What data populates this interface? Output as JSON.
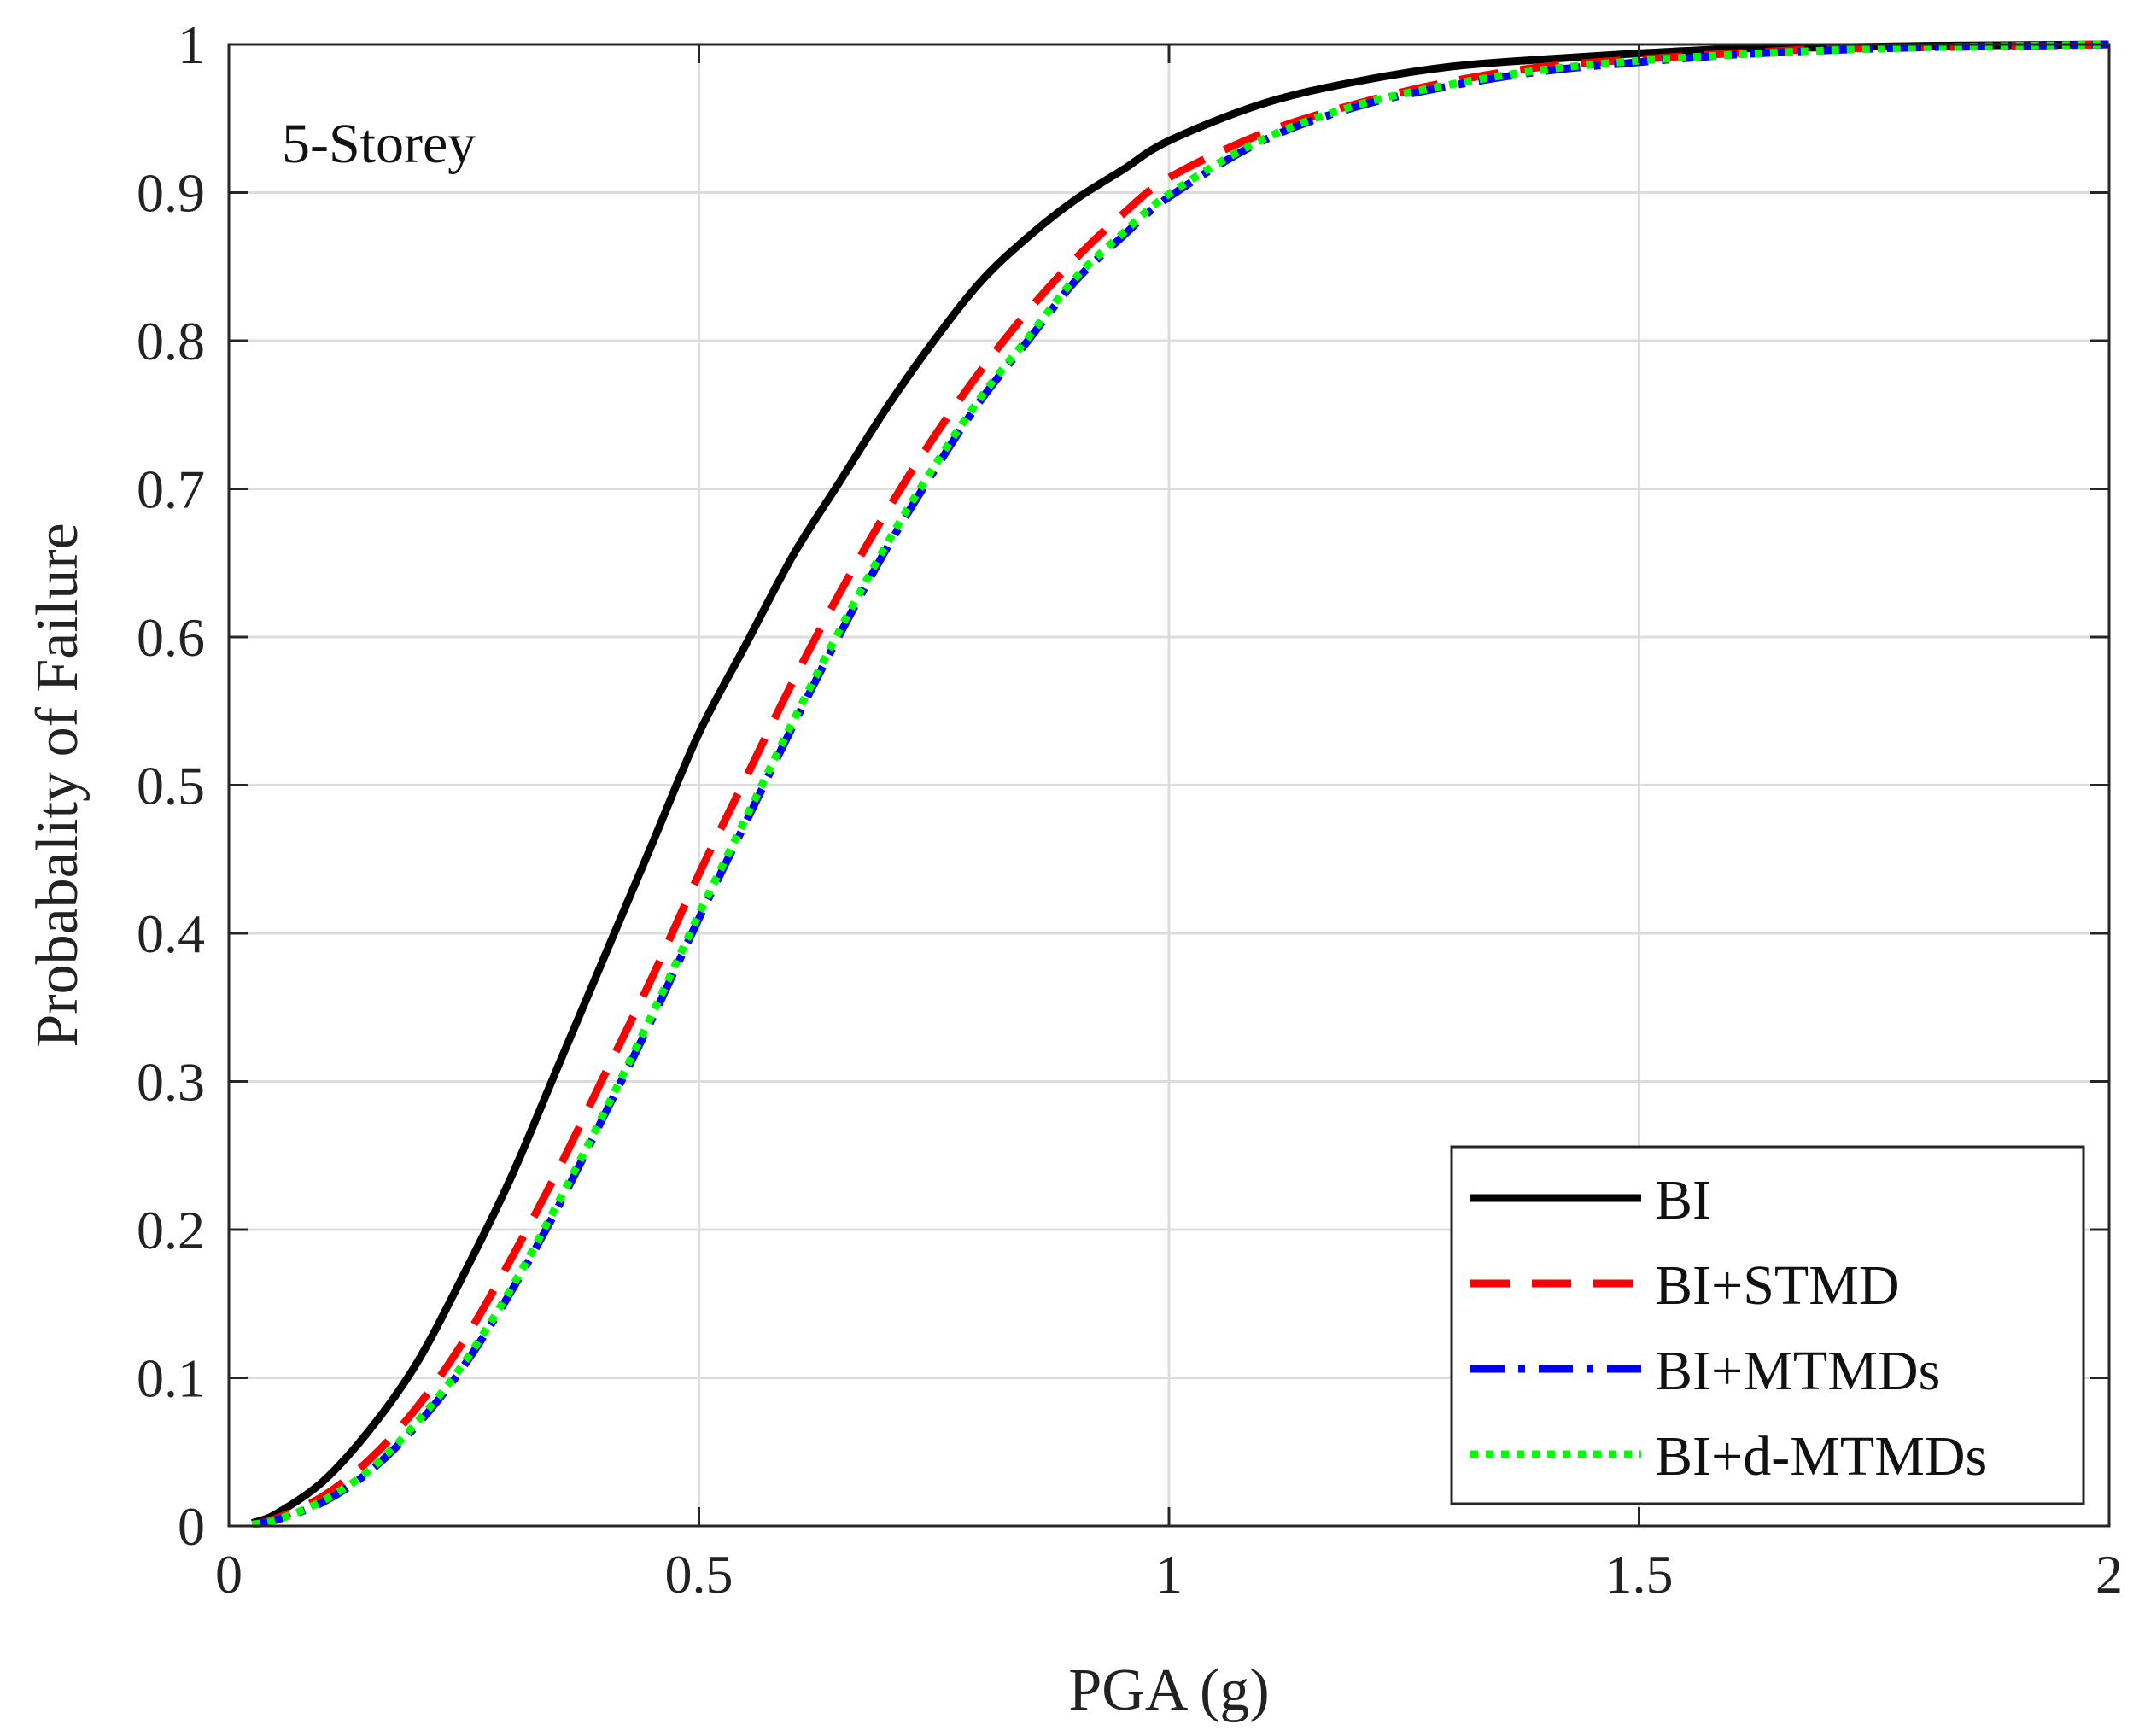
{
  "chart_data": {
    "type": "line",
    "xlabel": "PGA (g)",
    "ylabel": "Probabality of Failure",
    "annotation": "5-Storey",
    "xlim": [
      0,
      2
    ],
    "ylim": [
      0,
      1
    ],
    "xticks": [
      0,
      0.5,
      1,
      1.5,
      2
    ],
    "xtick_labels": [
      "0",
      "0.5",
      "1",
      "1.5",
      "2"
    ],
    "yticks": [
      0,
      0.1,
      0.2,
      0.3,
      0.4,
      0.5,
      0.6,
      0.7,
      0.8,
      0.9,
      1
    ],
    "ytick_labels": [
      "0",
      "0.1",
      "0.2",
      "0.3",
      "0.4",
      "0.5",
      "0.6",
      "0.7",
      "0.8",
      "0.9",
      "1"
    ],
    "grid": true,
    "legend_position": "bottom-right",
    "x": [
      0.025,
      0.05,
      0.1,
      0.15,
      0.2,
      0.25,
      0.3,
      0.35,
      0.4,
      0.45,
      0.5,
      0.55,
      0.6,
      0.65,
      0.7,
      0.75,
      0.8,
      0.85,
      0.9,
      0.95,
      1.0,
      1.1,
      1.2,
      1.3,
      1.4,
      1.5,
      1.6,
      1.7,
      1.8,
      1.9,
      2.0
    ],
    "series": [
      {
        "name": "BI",
        "color": "#000000",
        "style": "solid",
        "values": [
          0.002,
          0.008,
          0.03,
          0.065,
          0.11,
          0.17,
          0.235,
          0.31,
          0.385,
          0.46,
          0.535,
          0.595,
          0.655,
          0.705,
          0.755,
          0.8,
          0.84,
          0.87,
          0.895,
          0.915,
          0.935,
          0.96,
          0.975,
          0.985,
          0.99,
          0.994,
          0.997,
          0.998,
          0.999,
          0.9995,
          1.0
        ]
      },
      {
        "name": "BI+STMD",
        "color": "#ff0000",
        "style": "dashed",
        "values": [
          0.001,
          0.005,
          0.02,
          0.045,
          0.08,
          0.125,
          0.18,
          0.24,
          0.305,
          0.37,
          0.44,
          0.505,
          0.57,
          0.63,
          0.685,
          0.735,
          0.78,
          0.82,
          0.855,
          0.885,
          0.91,
          0.94,
          0.96,
          0.975,
          0.985,
          0.99,
          0.994,
          0.997,
          0.998,
          0.999,
          1.0
        ]
      },
      {
        "name": "BI+MTMDs",
        "color": "#0000ff",
        "style": "dashdot",
        "values": [
          0.001,
          0.004,
          0.016,
          0.037,
          0.068,
          0.108,
          0.158,
          0.215,
          0.278,
          0.342,
          0.41,
          0.475,
          0.54,
          0.602,
          0.66,
          0.712,
          0.76,
          0.8,
          0.84,
          0.87,
          0.897,
          0.935,
          0.958,
          0.972,
          0.982,
          0.988,
          0.993,
          0.996,
          0.998,
          0.999,
          1.0
        ]
      },
      {
        "name": "BI+d-MTMDs",
        "color": "#00ff00",
        "style": "dotted",
        "values": [
          0.001,
          0.004,
          0.017,
          0.038,
          0.07,
          0.11,
          0.16,
          0.218,
          0.28,
          0.345,
          0.413,
          0.478,
          0.543,
          0.605,
          0.663,
          0.715,
          0.762,
          0.802,
          0.842,
          0.872,
          0.899,
          0.936,
          0.959,
          0.973,
          0.983,
          0.989,
          0.993,
          0.996,
          0.998,
          0.999,
          1.0
        ]
      }
    ]
  }
}
